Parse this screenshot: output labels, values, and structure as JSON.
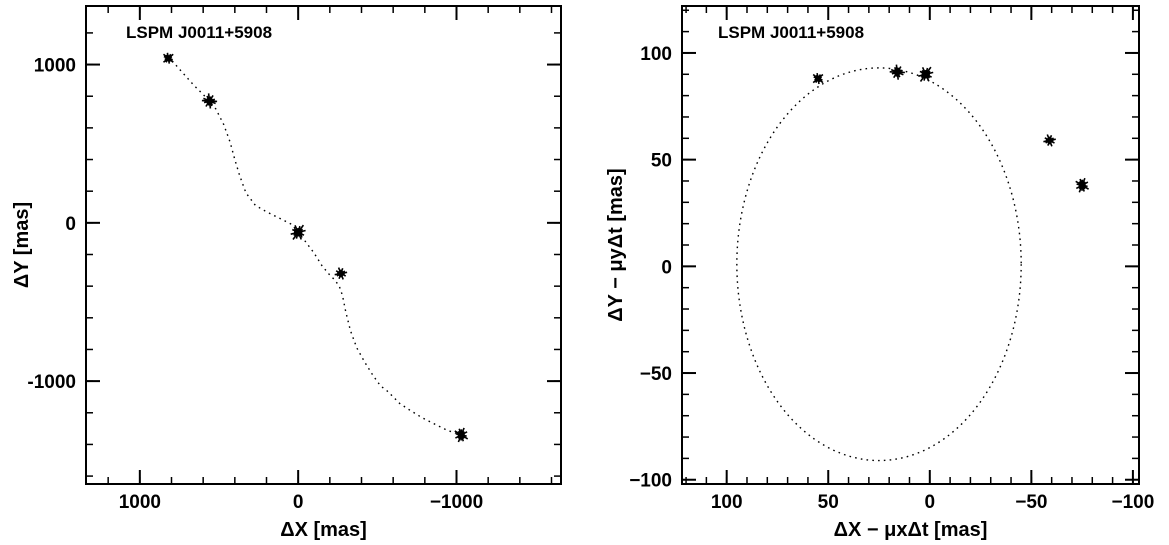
{
  "chart_data": [
    {
      "type": "scatter",
      "title": "LSPM J0011+5908",
      "xlabel": "ΔX [mas]",
      "ylabel": "ΔY [mas]",
      "xlim": [
        1340,
        -1660
      ],
      "ylim": [
        -1650,
        1370
      ],
      "x_reversed": true,
      "x_ticks": [
        1000,
        0,
        -1000
      ],
      "x_tick_labels": [
        "1000",
        "0",
        "−1000"
      ],
      "y_ticks": [
        -1000,
        0,
        1000
      ],
      "y_tick_labels": [
        "-1000",
        "0",
        "1000"
      ],
      "grid": false,
      "orbit_track": {
        "style": "dotted",
        "x": [
          820,
          740,
          660,
          590,
          560,
          520,
          470,
          430,
          400,
          370,
          330,
          270,
          200,
          120,
          40,
          0,
          -40,
          -100,
          -150,
          -200,
          -230,
          -260,
          -280,
          -300,
          -330,
          -370,
          -420,
          -470,
          -520,
          -560,
          -600,
          -640,
          -700,
          -780,
          -860,
          -940,
          -1000,
          -1040
        ],
        "y": [
          1050,
          960,
          870,
          800,
          770,
          720,
          620,
          510,
          400,
          300,
          190,
          110,
          70,
          30,
          -10,
          -60,
          -110,
          -190,
          -270,
          -330,
          -360,
          -400,
          -460,
          -560,
          -680,
          -790,
          -880,
          -960,
          -1030,
          -1060,
          -1100,
          -1140,
          -1180,
          -1230,
          -1270,
          -1310,
          -1330,
          -1350
        ]
      },
      "observations": {
        "x": [
          820,
          560,
          0,
          -270,
          -1030
        ],
        "y": [
          1040,
          770,
          -60,
          -320,
          -1340
        ]
      }
    },
    {
      "type": "scatter",
      "title": "LSPM J0011+5908",
      "xlabel": "ΔX − μxΔt [mas]",
      "ylabel": "ΔY − μyΔt [mas]",
      "xlim": [
        122,
        -103
      ],
      "ylim": [
        -102,
        122
      ],
      "x_reversed": true,
      "x_ticks": [
        100,
        50,
        0,
        -50,
        -100
      ],
      "x_tick_labels": [
        "100",
        "50",
        "0",
        "−50",
        "−100"
      ],
      "y_ticks": [
        -100,
        -50,
        0,
        50,
        100
      ],
      "y_tick_labels": [
        "−100",
        "−50",
        "0",
        "50",
        "100"
      ],
      "grid": false,
      "orbit_track": {
        "style": "dotted",
        "center": [
          25,
          1
        ],
        "radius_x": 70,
        "radius_y": 92
      },
      "observations": {
        "x": [
          55,
          16,
          2,
          -59,
          -75
        ],
        "y": [
          88,
          91,
          90,
          59,
          38
        ]
      }
    }
  ]
}
